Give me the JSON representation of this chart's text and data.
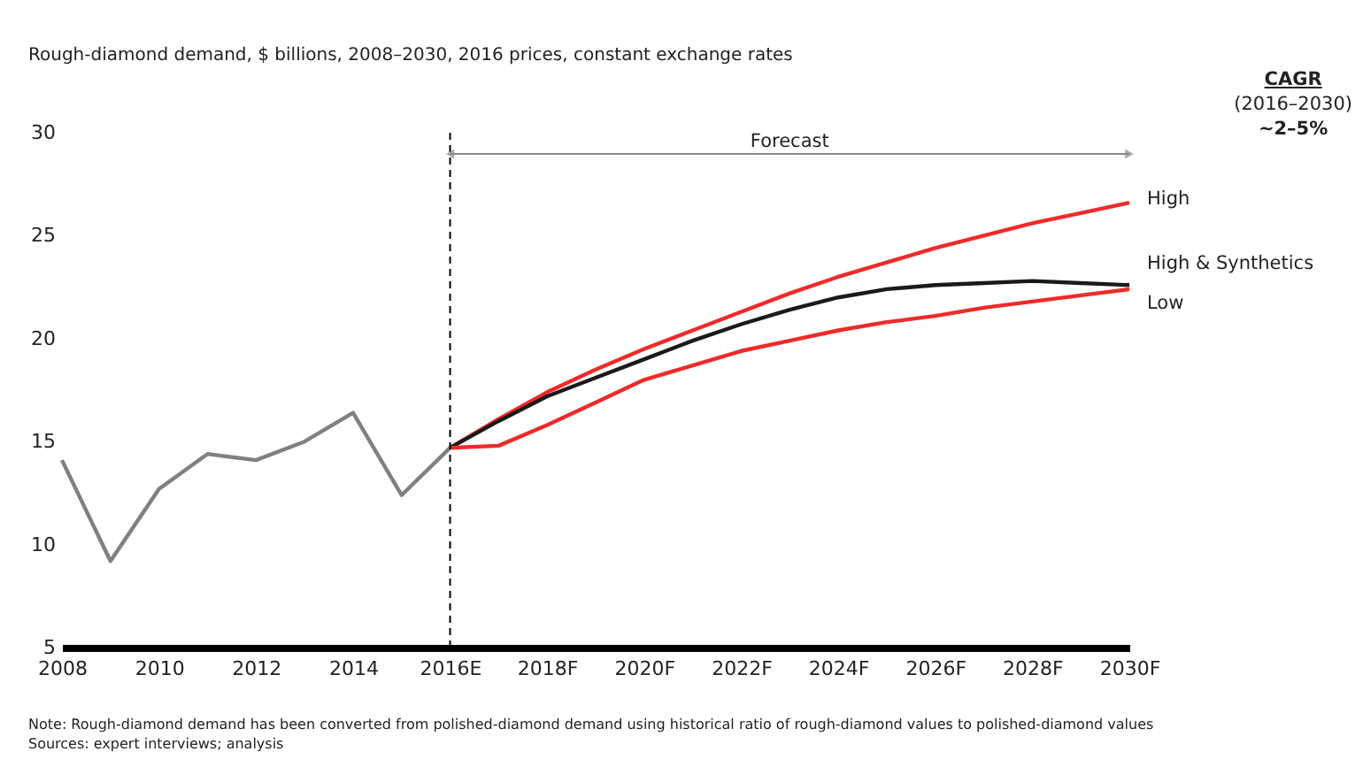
{
  "chart_data": {
    "type": "line",
    "title": "Rough-diamond demand, $ billions, 2008–2030, 2016 prices, constant exchange rates",
    "categories": [
      "2008",
      null,
      "2010",
      null,
      "2012",
      null,
      "2014",
      null,
      "2016E",
      null,
      "2018F",
      null,
      "2020F",
      null,
      "2022F",
      null,
      "2024F",
      null,
      "2026F",
      null,
      "2028F",
      null,
      "2030F"
    ],
    "series": [
      {
        "color": "#808080",
        "values": [
          14.1,
          9.2,
          12.7,
          14.4,
          14.1,
          15.0,
          16.4,
          12.4,
          14.7,
          null,
          null,
          null,
          null,
          null,
          null,
          null,
          null,
          null,
          null,
          null,
          null,
          null,
          null
        ]
      },
      {
        "name": "High",
        "color": "#f02a2a",
        "values": [
          null,
          null,
          null,
          null,
          null,
          null,
          null,
          null,
          14.7,
          16.1,
          17.4,
          18.5,
          19.5,
          20.4,
          21.3,
          22.2,
          23.0,
          23.7,
          24.4,
          25.0,
          25.6,
          26.1,
          26.6
        ]
      },
      {
        "name": "High & Synthetics",
        "color": "#1a1a1a",
        "values": [
          null,
          null,
          null,
          null,
          null,
          null,
          null,
          null,
          14.7,
          16.0,
          17.2,
          18.1,
          19.0,
          19.9,
          20.7,
          21.4,
          22.0,
          22.4,
          22.6,
          22.7,
          22.8,
          22.7,
          22.6
        ]
      },
      {
        "name": "Low",
        "color": "#f02a2a",
        "values": [
          null,
          null,
          null,
          null,
          null,
          null,
          null,
          null,
          14.7,
          14.8,
          15.8,
          16.9,
          18.0,
          18.7,
          19.4,
          19.9,
          20.4,
          20.8,
          21.1,
          21.5,
          21.8,
          22.1,
          22.4
        ]
      }
    ],
    "ylim": [
      5,
      30
    ],
    "yticks": [
      5,
      10,
      15,
      20,
      25,
      30
    ],
    "grid": false,
    "ref_lines": [
      {
        "axis": "x",
        "value": "2016E",
        "color": "#000000",
        "line_style": "dashed"
      }
    ],
    "annotations": [
      "Forecast",
      "CAGR",
      "(2016–2030)",
      "~2–5%",
      "Note: Rough-diamond demand has been converted from polished-diamond demand using historical ratio of rough-diamond values to polished-diamond values",
      "Sources: expert interviews; analysis"
    ]
  }
}
